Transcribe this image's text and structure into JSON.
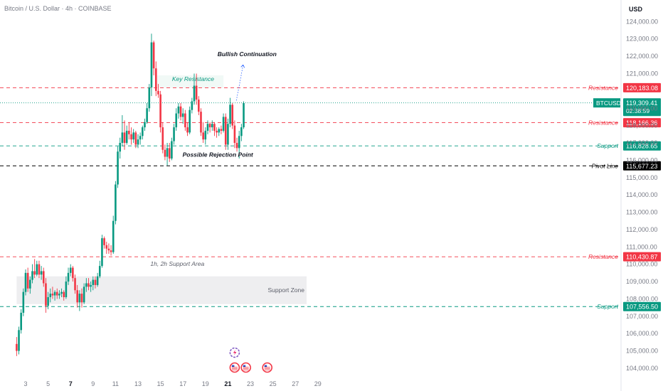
{
  "header": {
    "symbol_title": "Bitcoin / U.S. Dollar · 4h · COINBASE",
    "currency": "USD"
  },
  "chart_data": {
    "type": "candlestick",
    "x_ticks": [
      {
        "label": "3",
        "day": 3
      },
      {
        "label": "5",
        "day": 5
      },
      {
        "label": "7",
        "day": 7,
        "bold": true
      },
      {
        "label": "9",
        "day": 9
      },
      {
        "label": "11",
        "day": 11
      },
      {
        "label": "13",
        "day": 13
      },
      {
        "label": "15",
        "day": 15
      },
      {
        "label": "17",
        "day": 17
      },
      {
        "label": "19",
        "day": 19
      },
      {
        "label": "21",
        "day": 21,
        "bold": true
      },
      {
        "label": "23",
        "day": 23
      },
      {
        "label": "25",
        "day": 25
      },
      {
        "label": "27",
        "day": 27
      },
      {
        "label": "29",
        "day": 29
      }
    ],
    "y_ticks": [
      "124,000.00",
      "123,000.00",
      "122,000.00",
      "121,000.00",
      "119,000.00",
      "118,000.00",
      "117,000.00",
      "116,000.00",
      "115,000.00",
      "114,000.00",
      "113,000.00",
      "112,000.00",
      "111,000.00",
      "110,000.00",
      "109,000.00",
      "108,000.00",
      "107,000.00",
      "106,000.00",
      "105,000.00",
      "104,000.00"
    ],
    "ylim": [
      103900,
      124400
    ],
    "xlim": [
      2.2,
      30.0
    ],
    "levels": [
      {
        "name": "Resistance",
        "price": 120183.08,
        "label": "120,183.08",
        "color": "#f23645",
        "style": "dashed"
      },
      {
        "name": "Resistance",
        "price": 118166.36,
        "label": "118,166.36",
        "color": "#f23645",
        "style": "dashed"
      },
      {
        "name": "Support",
        "price": 116828.65,
        "label": "116,828.65",
        "color": "#089981",
        "style": "dashed"
      },
      {
        "name": "Pivot Line",
        "price": 115677.23,
        "label": "115,677.23",
        "color": "#000000",
        "style": "dashed"
      },
      {
        "name": "Resistance",
        "price": 110430.87,
        "label": "110,430.87",
        "color": "#f23645",
        "style": "dashed"
      },
      {
        "name": "Support",
        "price": 107556.5,
        "label": "107,556.50",
        "color": "#089981",
        "style": "dashed"
      }
    ],
    "current_price": {
      "symbol": "BTCUSD",
      "price": 119309.41,
      "label": "119,309.41",
      "countdown": "02:38:59",
      "color": "#089981"
    },
    "zones": [
      {
        "label": "Support Zone",
        "low": 107700,
        "high": 109300,
        "from_day": 2.2,
        "to_day": 28.0
      },
      {
        "label": "Key Resistance",
        "low": 120183,
        "high": 120900,
        "from_day": 14.7,
        "to_day": 20.6
      }
    ],
    "annotations": [
      {
        "text": "Bullish Continuation",
        "day": 22.7,
        "price": 122000
      },
      {
        "text": "Possible Rejection Point",
        "day": 20.1,
        "price": 116200
      },
      {
        "text": "1h, 2h Support Area",
        "day": 16.5,
        "price": 109900
      }
    ],
    "projection": [
      [
        21.75,
        119450
      ],
      [
        22.05,
        120450
      ],
      [
        22.35,
        121500
      ]
    ],
    "candles": [
      {
        "d": 2.2,
        "o": 105400,
        "h": 105800,
        "l": 104700,
        "c": 105000
      },
      {
        "d": 2.4,
        "o": 105000,
        "h": 106400,
        "l": 104800,
        "c": 106200
      },
      {
        "d": 2.6,
        "o": 106200,
        "h": 107400,
        "l": 106000,
        "c": 107200
      },
      {
        "d": 2.8,
        "o": 107200,
        "h": 108600,
        "l": 107000,
        "c": 108400
      },
      {
        "d": 3.0,
        "o": 108400,
        "h": 109700,
        "l": 108200,
        "c": 109500
      },
      {
        "d": 3.2,
        "o": 109500,
        "h": 109800,
        "l": 108400,
        "c": 108600
      },
      {
        "d": 3.4,
        "o": 108600,
        "h": 109300,
        "l": 108300,
        "c": 109100
      },
      {
        "d": 3.6,
        "o": 109100,
        "h": 110000,
        "l": 108900,
        "c": 109600
      },
      {
        "d": 3.8,
        "o": 109600,
        "h": 110300,
        "l": 109200,
        "c": 109400
      },
      {
        "d": 4.0,
        "o": 109400,
        "h": 110200,
        "l": 109300,
        "c": 110000
      },
      {
        "d": 4.2,
        "o": 110000,
        "h": 110200,
        "l": 109200,
        "c": 109400
      },
      {
        "d": 4.4,
        "o": 109400,
        "h": 109900,
        "l": 109100,
        "c": 109600
      },
      {
        "d": 4.6,
        "o": 109600,
        "h": 109800,
        "l": 108700,
        "c": 108900
      },
      {
        "d": 4.8,
        "o": 108900,
        "h": 109200,
        "l": 107200,
        "c": 107600
      },
      {
        "d": 5.0,
        "o": 107600,
        "h": 108400,
        "l": 107400,
        "c": 108100
      },
      {
        "d": 5.2,
        "o": 108100,
        "h": 108600,
        "l": 107800,
        "c": 108300
      },
      {
        "d": 5.4,
        "o": 108300,
        "h": 108700,
        "l": 108000,
        "c": 108200
      },
      {
        "d": 5.6,
        "o": 108200,
        "h": 108500,
        "l": 107900,
        "c": 108400
      },
      {
        "d": 5.8,
        "o": 108400,
        "h": 108600,
        "l": 108000,
        "c": 108200
      },
      {
        "d": 6.0,
        "o": 108200,
        "h": 108500,
        "l": 108000,
        "c": 108300
      },
      {
        "d": 6.2,
        "o": 108300,
        "h": 108600,
        "l": 108100,
        "c": 108400
      },
      {
        "d": 6.4,
        "o": 108400,
        "h": 108500,
        "l": 107900,
        "c": 108100
      },
      {
        "d": 6.6,
        "o": 108100,
        "h": 109300,
        "l": 108000,
        "c": 109000
      },
      {
        "d": 6.8,
        "o": 109000,
        "h": 109800,
        "l": 108800,
        "c": 109500
      },
      {
        "d": 7.0,
        "o": 109500,
        "h": 110000,
        "l": 109300,
        "c": 109800
      },
      {
        "d": 7.2,
        "o": 109800,
        "h": 109900,
        "l": 109000,
        "c": 109200
      },
      {
        "d": 7.4,
        "o": 109200,
        "h": 109400,
        "l": 108300,
        "c": 108500
      },
      {
        "d": 7.6,
        "o": 108500,
        "h": 108800,
        "l": 107500,
        "c": 107800
      },
      {
        "d": 7.8,
        "o": 107800,
        "h": 108500,
        "l": 107300,
        "c": 108300
      },
      {
        "d": 8.0,
        "o": 108300,
        "h": 108600,
        "l": 107500,
        "c": 107800
      },
      {
        "d": 8.2,
        "o": 107800,
        "h": 108900,
        "l": 107700,
        "c": 108700
      },
      {
        "d": 8.4,
        "o": 108700,
        "h": 109200,
        "l": 108400,
        "c": 108900
      },
      {
        "d": 8.6,
        "o": 108900,
        "h": 109200,
        "l": 108500,
        "c": 108700
      },
      {
        "d": 8.8,
        "o": 108700,
        "h": 109000,
        "l": 108400,
        "c": 108800
      },
      {
        "d": 9.0,
        "o": 108800,
        "h": 109300,
        "l": 108500,
        "c": 109100
      },
      {
        "d": 9.2,
        "o": 109100,
        "h": 109300,
        "l": 108600,
        "c": 108800
      },
      {
        "d": 9.4,
        "o": 108800,
        "h": 109500,
        "l": 108700,
        "c": 109300
      },
      {
        "d": 9.6,
        "o": 109300,
        "h": 110200,
        "l": 109200,
        "c": 109900
      },
      {
        "d": 9.8,
        "o": 109900,
        "h": 111700,
        "l": 109800,
        "c": 111500
      },
      {
        "d": 10.0,
        "o": 111500,
        "h": 111600,
        "l": 110900,
        "c": 111100
      },
      {
        "d": 10.2,
        "o": 111100,
        "h": 111300,
        "l": 110600,
        "c": 110900
      },
      {
        "d": 10.4,
        "o": 110900,
        "h": 111200,
        "l": 110600,
        "c": 110800
      },
      {
        "d": 10.6,
        "o": 110800,
        "h": 111100,
        "l": 110500,
        "c": 110700
      },
      {
        "d": 10.8,
        "o": 110700,
        "h": 112800,
        "l": 110600,
        "c": 112500
      },
      {
        "d": 11.0,
        "o": 112500,
        "h": 114800,
        "l": 112300,
        "c": 114600
      },
      {
        "d": 11.2,
        "o": 114600,
        "h": 116800,
        "l": 114400,
        "c": 116500
      },
      {
        "d": 11.4,
        "o": 116500,
        "h": 117300,
        "l": 116100,
        "c": 117000
      },
      {
        "d": 11.6,
        "o": 117000,
        "h": 118600,
        "l": 116800,
        "c": 117600
      },
      {
        "d": 11.8,
        "o": 117600,
        "h": 118300,
        "l": 116600,
        "c": 117000
      },
      {
        "d": 12.0,
        "o": 117000,
        "h": 118000,
        "l": 116900,
        "c": 117700
      },
      {
        "d": 12.2,
        "o": 117700,
        "h": 118200,
        "l": 117200,
        "c": 117500
      },
      {
        "d": 12.4,
        "o": 117500,
        "h": 117900,
        "l": 116900,
        "c": 117200
      },
      {
        "d": 12.6,
        "o": 117200,
        "h": 117800,
        "l": 117000,
        "c": 117600
      },
      {
        "d": 12.8,
        "o": 117600,
        "h": 117700,
        "l": 116700,
        "c": 116900
      },
      {
        "d": 13.0,
        "o": 116900,
        "h": 117500,
        "l": 116700,
        "c": 117200
      },
      {
        "d": 13.2,
        "o": 117200,
        "h": 117600,
        "l": 116900,
        "c": 117400
      },
      {
        "d": 13.4,
        "o": 117400,
        "h": 118000,
        "l": 117200,
        "c": 117900
      },
      {
        "d": 13.6,
        "o": 117900,
        "h": 118400,
        "l": 117700,
        "c": 118200
      },
      {
        "d": 13.8,
        "o": 118200,
        "h": 119300,
        "l": 118100,
        "c": 119000
      },
      {
        "d": 14.0,
        "o": 119000,
        "h": 120400,
        "l": 118800,
        "c": 120200
      },
      {
        "d": 14.2,
        "o": 120200,
        "h": 123300,
        "l": 119700,
        "c": 122800
      },
      {
        "d": 14.4,
        "o": 122800,
        "h": 122900,
        "l": 120900,
        "c": 121300
      },
      {
        "d": 14.6,
        "o": 121300,
        "h": 121700,
        "l": 119700,
        "c": 120000
      },
      {
        "d": 14.8,
        "o": 120000,
        "h": 120400,
        "l": 119600,
        "c": 119800
      },
      {
        "d": 15.0,
        "o": 119800,
        "h": 120000,
        "l": 117600,
        "c": 117900
      },
      {
        "d": 15.2,
        "o": 117900,
        "h": 118200,
        "l": 116400,
        "c": 116600
      },
      {
        "d": 15.4,
        "o": 116600,
        "h": 116900,
        "l": 116000,
        "c": 116200
      },
      {
        "d": 15.6,
        "o": 116200,
        "h": 117000,
        "l": 115700,
        "c": 116700
      },
      {
        "d": 15.8,
        "o": 116700,
        "h": 117000,
        "l": 115900,
        "c": 116100
      },
      {
        "d": 16.0,
        "o": 116100,
        "h": 117300,
        "l": 116000,
        "c": 117100
      },
      {
        "d": 16.2,
        "o": 117100,
        "h": 118100,
        "l": 116900,
        "c": 117900
      },
      {
        "d": 16.4,
        "o": 117900,
        "h": 119000,
        "l": 117700,
        "c": 118700
      },
      {
        "d": 16.6,
        "o": 118700,
        "h": 119300,
        "l": 118400,
        "c": 119100
      },
      {
        "d": 16.8,
        "o": 119100,
        "h": 119300,
        "l": 118300,
        "c": 118500
      },
      {
        "d": 17.0,
        "o": 118500,
        "h": 119000,
        "l": 118100,
        "c": 118700
      },
      {
        "d": 17.2,
        "o": 118700,
        "h": 118900,
        "l": 117700,
        "c": 117900
      },
      {
        "d": 17.4,
        "o": 117900,
        "h": 118200,
        "l": 117400,
        "c": 117600
      },
      {
        "d": 17.6,
        "o": 117600,
        "h": 119100,
        "l": 117500,
        "c": 118900
      },
      {
        "d": 17.8,
        "o": 118900,
        "h": 119600,
        "l": 118700,
        "c": 119400
      },
      {
        "d": 18.0,
        "o": 119400,
        "h": 121000,
        "l": 119200,
        "c": 120300
      },
      {
        "d": 18.2,
        "o": 120300,
        "h": 121000,
        "l": 119200,
        "c": 119500
      },
      {
        "d": 18.4,
        "o": 119500,
        "h": 119700,
        "l": 118600,
        "c": 118800
      },
      {
        "d": 18.6,
        "o": 118800,
        "h": 119000,
        "l": 117400,
        "c": 117600
      },
      {
        "d": 18.8,
        "o": 117600,
        "h": 118200,
        "l": 117000,
        "c": 117200
      },
      {
        "d": 19.0,
        "o": 117200,
        "h": 117900,
        "l": 116900,
        "c": 117700
      },
      {
        "d": 19.2,
        "o": 117700,
        "h": 118300,
        "l": 117500,
        "c": 118100
      },
      {
        "d": 19.4,
        "o": 118100,
        "h": 118200,
        "l": 117600,
        "c": 117900
      },
      {
        "d": 19.6,
        "o": 117900,
        "h": 118300,
        "l": 117700,
        "c": 118100
      },
      {
        "d": 19.8,
        "o": 118100,
        "h": 118200,
        "l": 117400,
        "c": 117700
      },
      {
        "d": 20.0,
        "o": 117700,
        "h": 117900,
        "l": 117300,
        "c": 117600
      },
      {
        "d": 20.2,
        "o": 117600,
        "h": 117900,
        "l": 117400,
        "c": 117800
      },
      {
        "d": 20.4,
        "o": 117800,
        "h": 118000,
        "l": 117500,
        "c": 117700
      },
      {
        "d": 20.6,
        "o": 117700,
        "h": 118700,
        "l": 117600,
        "c": 118500
      },
      {
        "d": 20.8,
        "o": 118500,
        "h": 118700,
        "l": 116600,
        "c": 116900
      },
      {
        "d": 21.0,
        "o": 116900,
        "h": 118400,
        "l": 116600,
        "c": 118100
      },
      {
        "d": 21.2,
        "o": 118100,
        "h": 119600,
        "l": 117900,
        "c": 119200
      },
      {
        "d": 21.4,
        "o": 119200,
        "h": 119300,
        "l": 117800,
        "c": 118000
      },
      {
        "d": 21.6,
        "o": 118000,
        "h": 118300,
        "l": 116700,
        "c": 117000
      },
      {
        "d": 21.8,
        "o": 117000,
        "h": 117300,
        "l": 116500,
        "c": 116700
      },
      {
        "d": 22.0,
        "o": 116700,
        "h": 117700,
        "l": 116100,
        "c": 117400
      },
      {
        "d": 22.2,
        "o": 117400,
        "h": 118100,
        "l": 117100,
        "c": 117900
      },
      {
        "d": 22.4,
        "o": 117900,
        "h": 119400,
        "l": 117800,
        "c": 119300
      }
    ]
  }
}
